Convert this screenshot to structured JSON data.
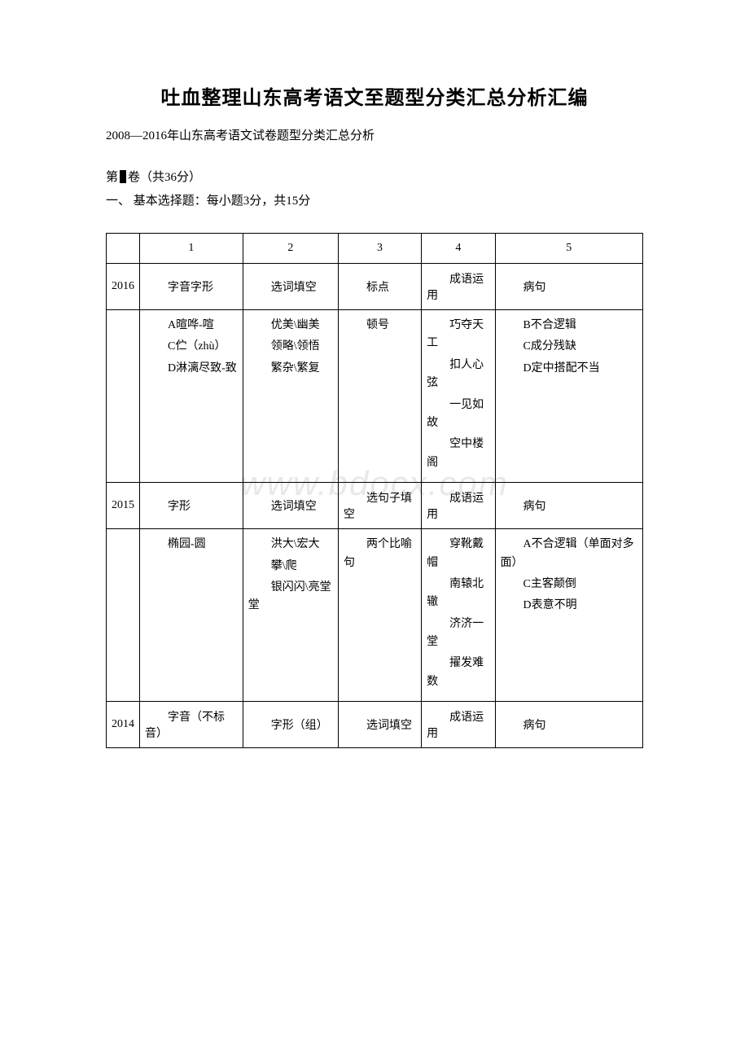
{
  "title": "吐血整理山东高考语文至题型分类汇总分析汇编",
  "subtitle": "2008—2016年山东高考语文试卷题型分类汇总分析",
  "section_prefix": "第",
  "section_suffix": "卷（共36分）",
  "section_sub": "一、 基本选择题：每小题3分，共15分",
  "watermark": "www.bdocx.com",
  "table": {
    "header": {
      "blank": "",
      "col1": "1",
      "col2": "2",
      "col3": "3",
      "col4": "4",
      "col5": "5"
    },
    "rows": [
      {
        "year": "2016",
        "c1": "字音字形",
        "c2": "选词填空",
        "c3": "标点",
        "c4": "成语运用",
        "c5": "病句"
      },
      {
        "year": "",
        "c1_lines": [
          "A暄哗-喧",
          "C伫（zhù）",
          "D淋漓尽致-致"
        ],
        "c2_lines": [
          "优美\\幽美",
          "领略\\领悟",
          "繁杂\\繁复"
        ],
        "c3_lines": [
          "顿号"
        ],
        "c4_lines": [
          "巧夺天工",
          "扣人心弦",
          "一见如故",
          "空中楼阁"
        ],
        "c5_lines": [
          "B不合逻辑",
          "C成分残缺",
          "D定中搭配不当"
        ]
      },
      {
        "year": "2015",
        "c1": "字形",
        "c2": "选词填空",
        "c3": "选句子填空",
        "c4": "成语运用",
        "c5": "病句"
      },
      {
        "year": "",
        "c1_lines": [
          "椭园-圆"
        ],
        "c2_lines": [
          "洪大\\宏大",
          "攀\\爬",
          "银闪闪\\亮堂堂"
        ],
        "c3_lines": [
          "两个比喻句"
        ],
        "c4_lines": [
          "穿靴戴帽",
          "南辕北辙",
          "济济一堂",
          "擢发难数"
        ],
        "c5_lines": [
          "A不合逻辑（单面对多面）",
          "C主客颠倒",
          "D表意不明"
        ]
      },
      {
        "year": "2014",
        "c1": "字音（不标音）",
        "c2": "字形（组）",
        "c3": "选词填空",
        "c4": "成语运用",
        "c5": "病句"
      }
    ]
  }
}
